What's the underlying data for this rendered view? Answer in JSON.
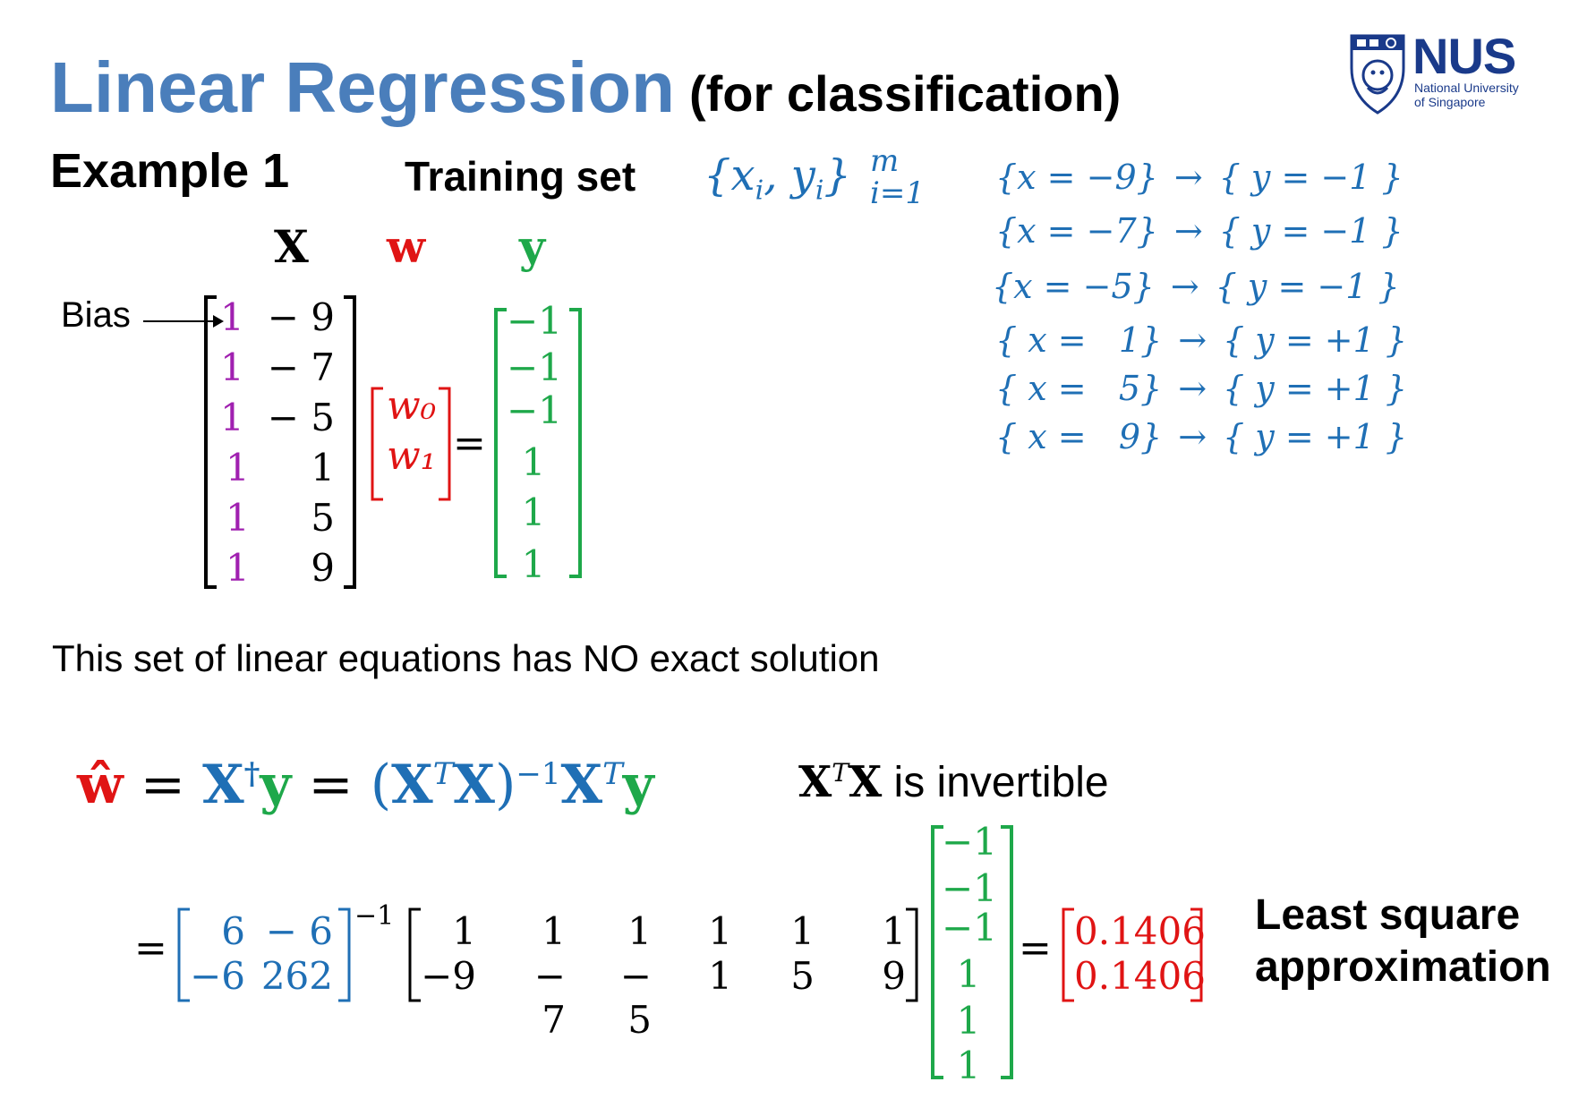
{
  "title": "Linear Regression",
  "subtitle": "(for classification)",
  "logo": {
    "name": "NUS",
    "line1": "National University",
    "line2": "of Singapore",
    "color": "#1a3a8a"
  },
  "example_label": "Example 1",
  "training_set_label": "Training set",
  "training_set_formula": {
    "set": "{x",
    "sub_i": "i",
    "comma_y": ", y",
    "sub_i2": "i",
    "close": "}",
    "sup": "m",
    "sub": "i=1"
  },
  "column_headers": {
    "X": "X",
    "w": "w",
    "y": "y"
  },
  "bias_label": "Bias",
  "X_matrix": [
    [
      "1",
      "− 9"
    ],
    [
      "1",
      "− 7"
    ],
    [
      "1",
      "− 5"
    ],
    [
      "1",
      "1"
    ],
    [
      "1",
      "5"
    ],
    [
      "1",
      "9"
    ]
  ],
  "w_vector": [
    "w₀",
    "w₁"
  ],
  "y_vector": [
    "−1",
    "−1",
    "−1",
    "1",
    "1",
    "1"
  ],
  "equals": "=",
  "mappings": [
    {
      "x": "{x = −9}",
      "arrow": "→",
      "y": "{ y = −1 }"
    },
    {
      "x": "{x = −7}",
      "arrow": "→",
      "y": "{ y = −1 }"
    },
    {
      "x": "{x = −5}",
      "arrow": "→",
      "y": "{ y = −1 }"
    },
    {
      "x": "{ x =   1}",
      "arrow": "→",
      "y": "{ y = +1 }"
    },
    {
      "x": "{ x =   5}",
      "arrow": "→",
      "y": "{ y = +1 }"
    },
    {
      "x": "{ x =   9}",
      "arrow": "→",
      "y": "{ y = +1 }"
    }
  ],
  "no_solution_text": "This set of linear equations has NO exact solution",
  "solution_formula": {
    "what": "ŵ",
    "eq1": " = ",
    "Xdag": "X",
    "dag": "†",
    "y1": "y",
    "eq2": " = ",
    "open": "(",
    "XT": "X",
    "T1": "T",
    "X2": "X",
    "close": ")",
    "inv": "−1",
    "XT2": "X",
    "T2": "T",
    "y2": "y"
  },
  "invertible": {
    "X": "X",
    "T": "T",
    "X2": "X",
    "text": " is invertible"
  },
  "inverse_matrix": [
    [
      "6",
      "− 6"
    ],
    [
      "−6",
      "262"
    ]
  ],
  "inverse_exp": "−1",
  "XT_matrix": [
    [
      "1",
      "1",
      "1",
      "1",
      "1",
      "1"
    ],
    [
      "−9",
      "− 7",
      "− 5",
      "1",
      "5",
      "9"
    ]
  ],
  "y_vector2": [
    "−1",
    "−1",
    "−1",
    "1",
    "1",
    "1"
  ],
  "result_vector": [
    "0.1406",
    "0.1406"
  ],
  "least_square_label": [
    "Least square",
    "approximation"
  ]
}
